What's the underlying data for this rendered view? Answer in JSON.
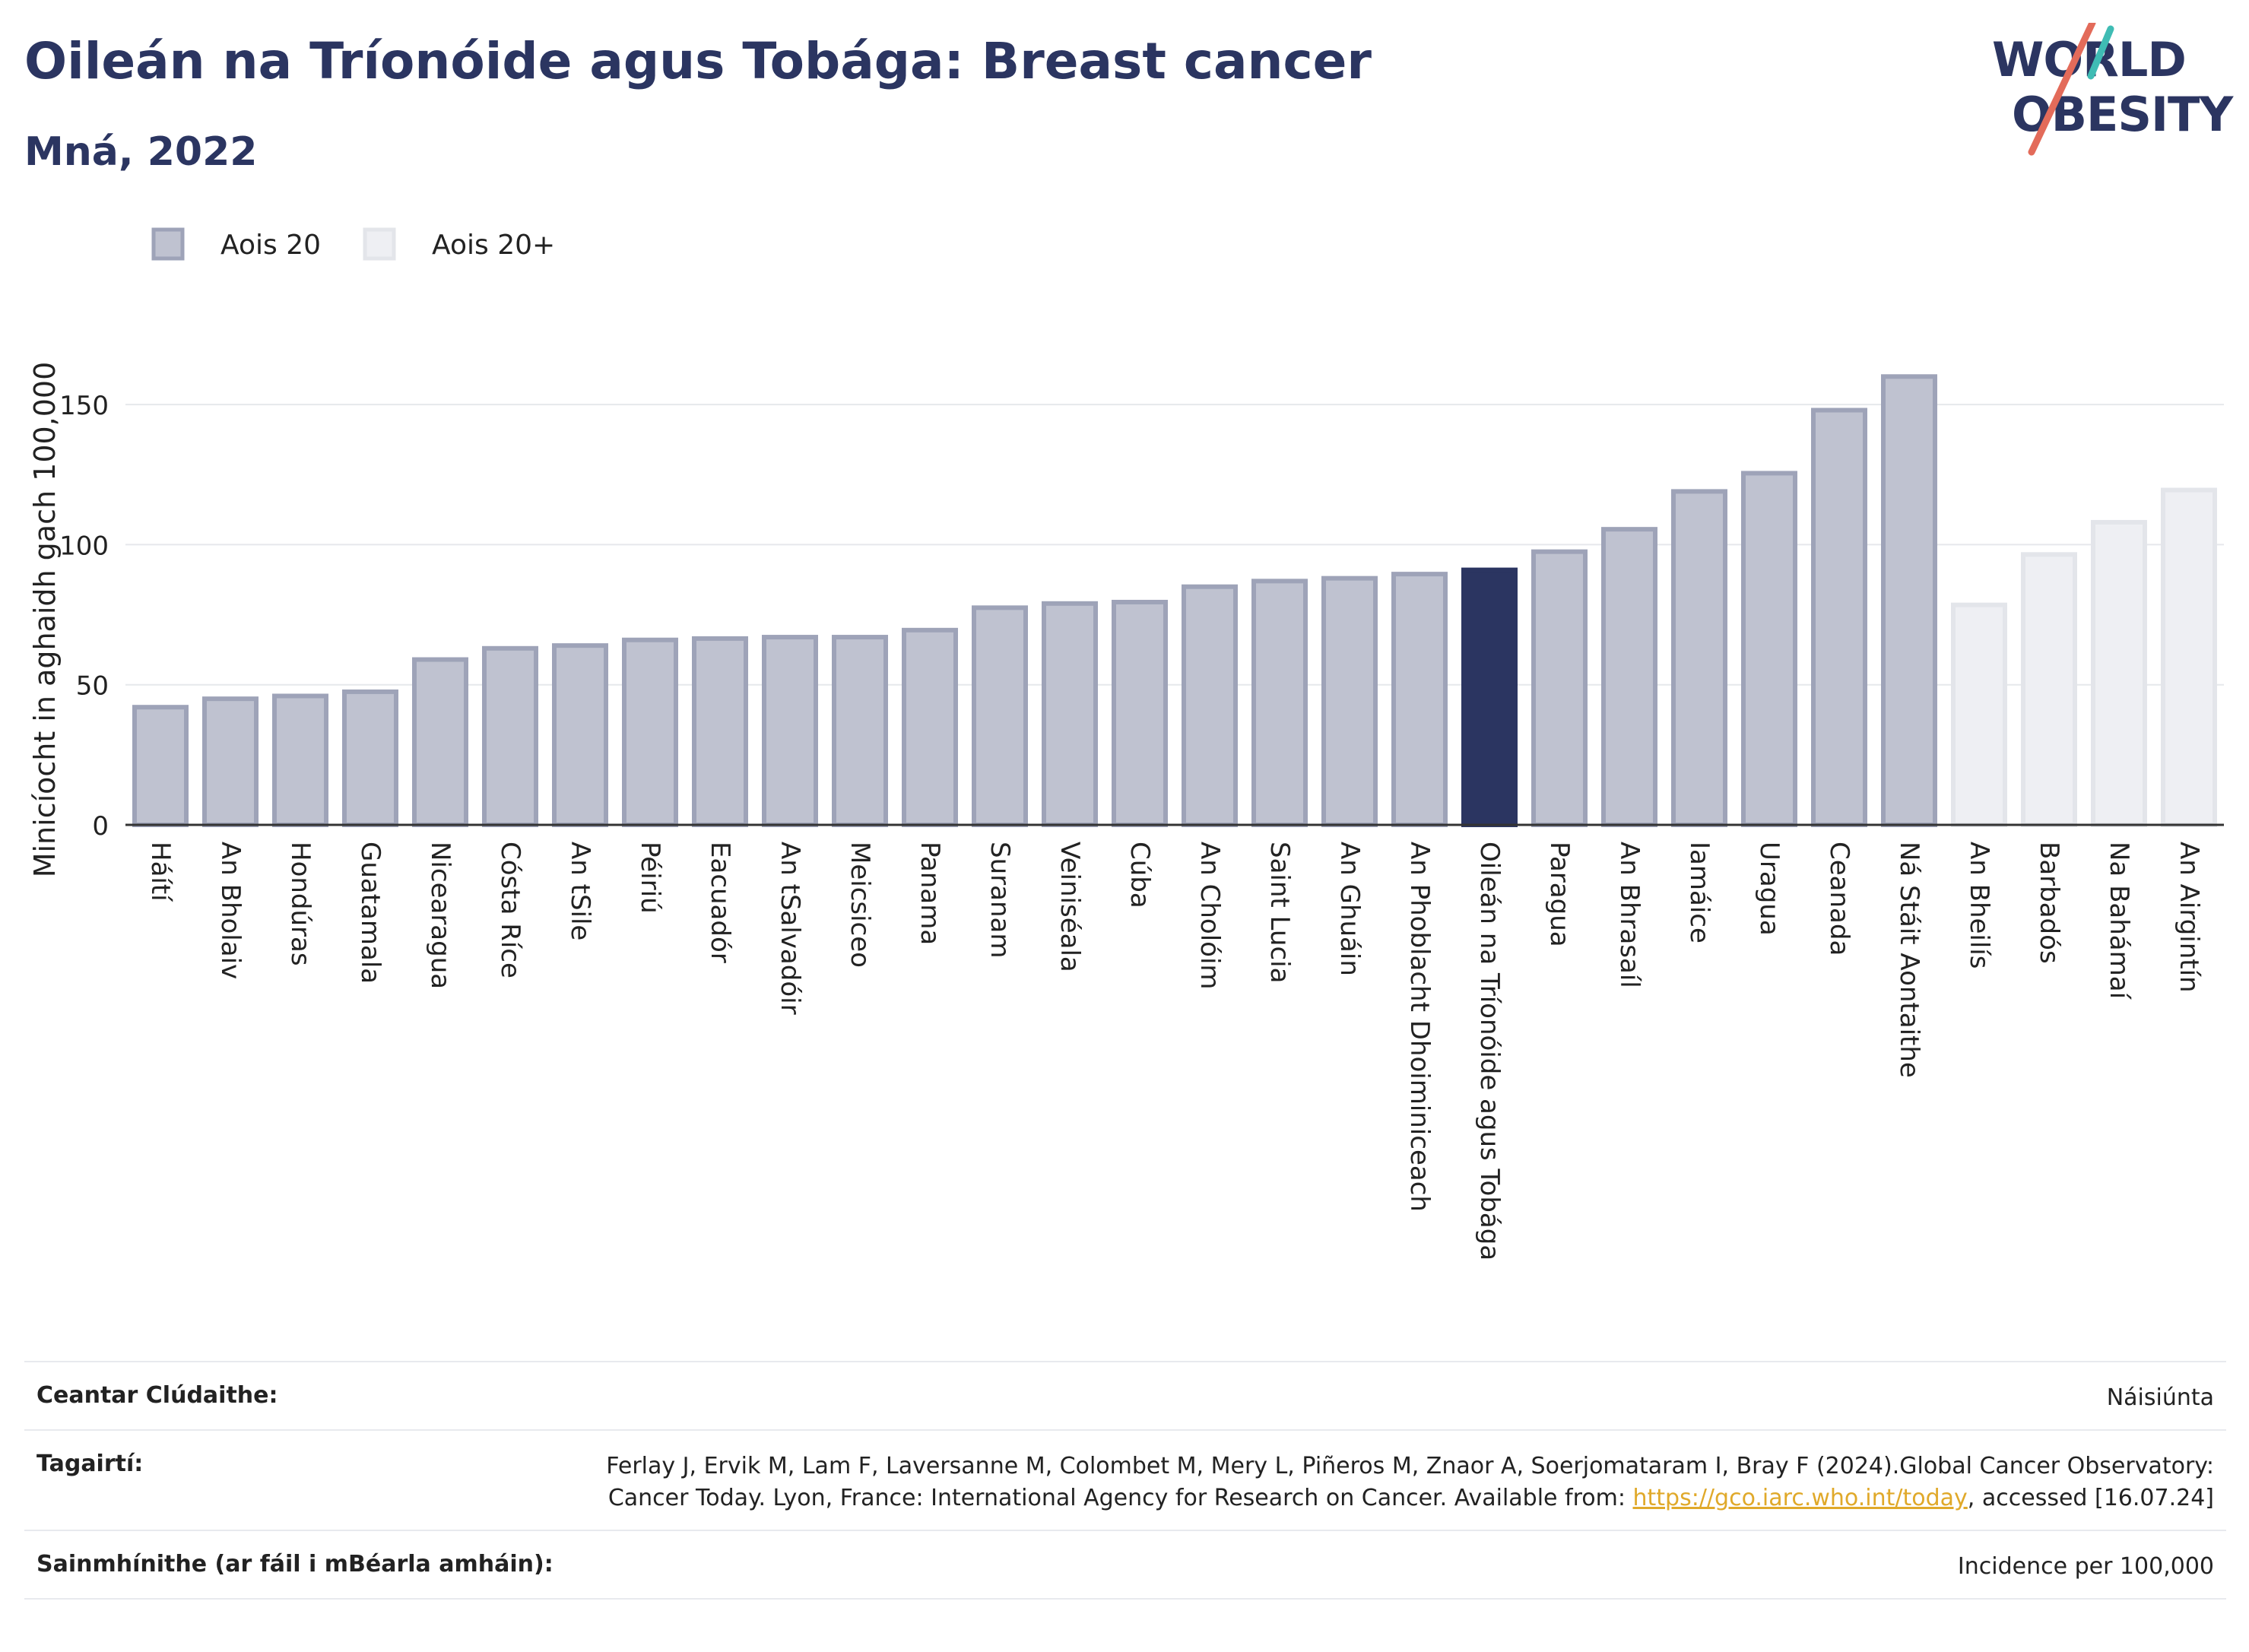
{
  "header": {
    "title": "Oileán na Tríonóide agus Tobága: Breast cancer",
    "subtitle": "Mná, 2022"
  },
  "logo": {
    "line1": "WORLD",
    "line2": "OBESITY"
  },
  "chart_data": {
    "type": "bar",
    "title": "Oileán na Tríonóide agus Tobága: Breast cancer",
    "subtitle": "Mná, 2022",
    "ylabel": "Minicíocht in aghaidh gach 100,000",
    "xlabel": "",
    "ylim": [
      0,
      175
    ],
    "yticks": [
      0,
      50,
      100,
      150
    ],
    "grid": true,
    "legend_position": "top-left",
    "legend": [
      {
        "label": "Aois 20",
        "fill": "#bfc2d0",
        "stroke": "#9ea3b8"
      },
      {
        "label": "Aois 20+",
        "fill": "#eeeff3",
        "stroke": "#e3e5ea"
      }
    ],
    "highlight_color": "#2b3561",
    "categories": [
      "Háítí",
      "An Bholaiv",
      "Hondúras",
      "Guatamala",
      "Nicearagua",
      "Cósta Ríce",
      "An tSile",
      "Péiriú",
      "Eacuadór",
      "An tSalvadóir",
      "Meicsiceo",
      "Panama",
      "Suranam",
      "Veiniséala",
      "Cúba",
      "An Cholóim",
      "Saint Lucia",
      "An Ghuáin",
      "An Phoblacht Dhoiminiceach",
      "Oileán na Tríonóide agus Tobága",
      "Paragua",
      "An Bhrasaíl",
      "Iamáice",
      "Uragua",
      "Ceanada",
      "Ná Stáit Aontaithe",
      "An Bheilís",
      "Barbadós",
      "Na Bahámaí",
      "An Airgintín"
    ],
    "values": [
      42,
      45,
      46,
      47.5,
      59,
      63,
      64,
      66,
      66.5,
      67,
      67,
      69.5,
      77.5,
      79,
      79.5,
      85,
      87,
      88,
      89.5,
      91,
      97.5,
      105.5,
      119,
      125.5,
      148,
      160,
      78.5,
      96.5,
      108,
      119.5
    ],
    "groups": [
      "Aois 20",
      "Aois 20",
      "Aois 20",
      "Aois 20",
      "Aois 20",
      "Aois 20",
      "Aois 20",
      "Aois 20",
      "Aois 20",
      "Aois 20",
      "Aois 20",
      "Aois 20",
      "Aois 20",
      "Aois 20",
      "Aois 20",
      "Aois 20",
      "Aois 20",
      "Aois 20",
      "Aois 20",
      "Aois 20",
      "Aois 20",
      "Aois 20",
      "Aois 20",
      "Aois 20",
      "Aois 20",
      "Aois 20",
      "Aois 20+",
      "Aois 20+",
      "Aois 20+",
      "Aois 20+"
    ],
    "highlighted": "Oileán na Tríonóide agus Tobága"
  },
  "footer": {
    "coverage_label": "Ceantar Clúdaithe:",
    "coverage_value": "Náisiúnta",
    "references_label": "Tagairtí:",
    "references_text": "Ferlay J, Ervik M, Lam F, Laversanne M, Colombet M, Mery L, Piñeros M, Znaor A, Soerjomataram I, Bray F (2024).Global Cancer Observatory: Cancer Today. Lyon, France: International Agency for Research on Cancer. Available from: ",
    "references_link": "https://gco.iarc.who.int/today",
    "references_suffix": ", accessed [16.07.24]",
    "definitions_label": "Sainmhínithe (ar fáil i mBéarla amháin):",
    "definitions_value": "Incidence per 100,000"
  }
}
